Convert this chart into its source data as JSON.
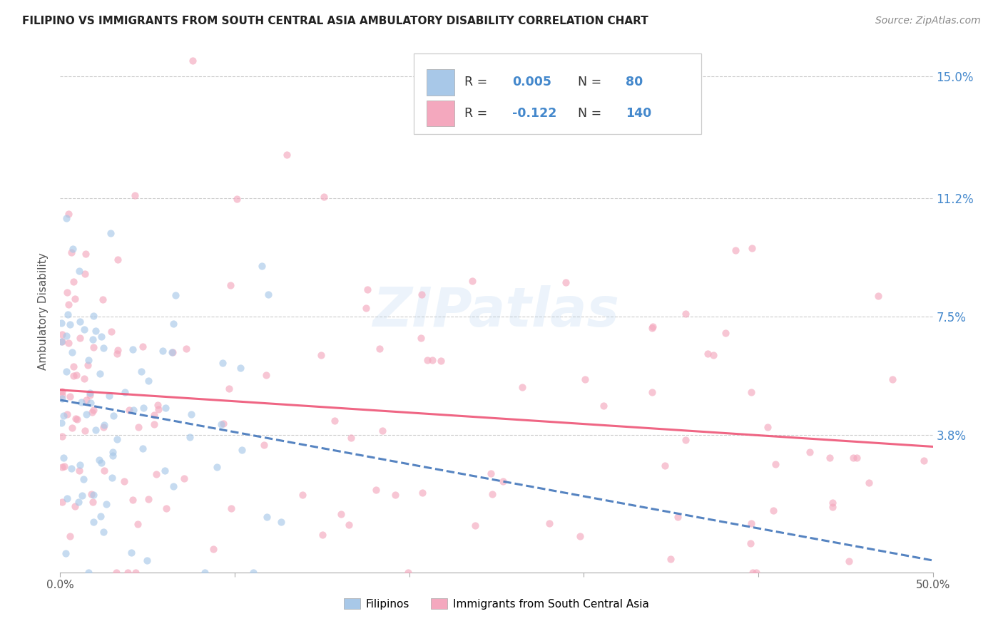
{
  "title": "FILIPINO VS IMMIGRANTS FROM SOUTH CENTRAL ASIA AMBULATORY DISABILITY CORRELATION CHART",
  "source": "Source: ZipAtlas.com",
  "ylabel": "Ambulatory Disability",
  "xlim": [
    0.0,
    0.5
  ],
  "ylim": [
    -0.005,
    0.158
  ],
  "ytick_vals": [
    0.0,
    0.038,
    0.075,
    0.112,
    0.15
  ],
  "ytick_labels_right": [
    "",
    "3.8%",
    "7.5%",
    "11.2%",
    "15.0%"
  ],
  "color_filipino": "#a8c8e8",
  "color_south_asia": "#f4a8be",
  "color_line_filipino": "#4477bb",
  "color_line_south_asia": "#ee5577",
  "watermark_text": "ZIPatlas",
  "filipinos_label": "Filipinos",
  "south_asia_label": "Immigrants from South Central Asia",
  "scatter_alpha": 0.65,
  "scatter_size": 55,
  "background_color": "#ffffff",
  "title_fontsize": 11,
  "axis_label_color": "#4488cc",
  "grid_color": "#cccccc",
  "legend_r1_text": "R = ",
  "legend_r1_val": "0.005",
  "legend_n1_text": "N = ",
  "legend_n1_val": " 80",
  "legend_r2_text": "R = ",
  "legend_r2_val": "-0.122",
  "legend_n2_text": "N = ",
  "legend_n2_val": "140",
  "blue_text_color": "#4488cc",
  "dark_text_color": "#333333"
}
